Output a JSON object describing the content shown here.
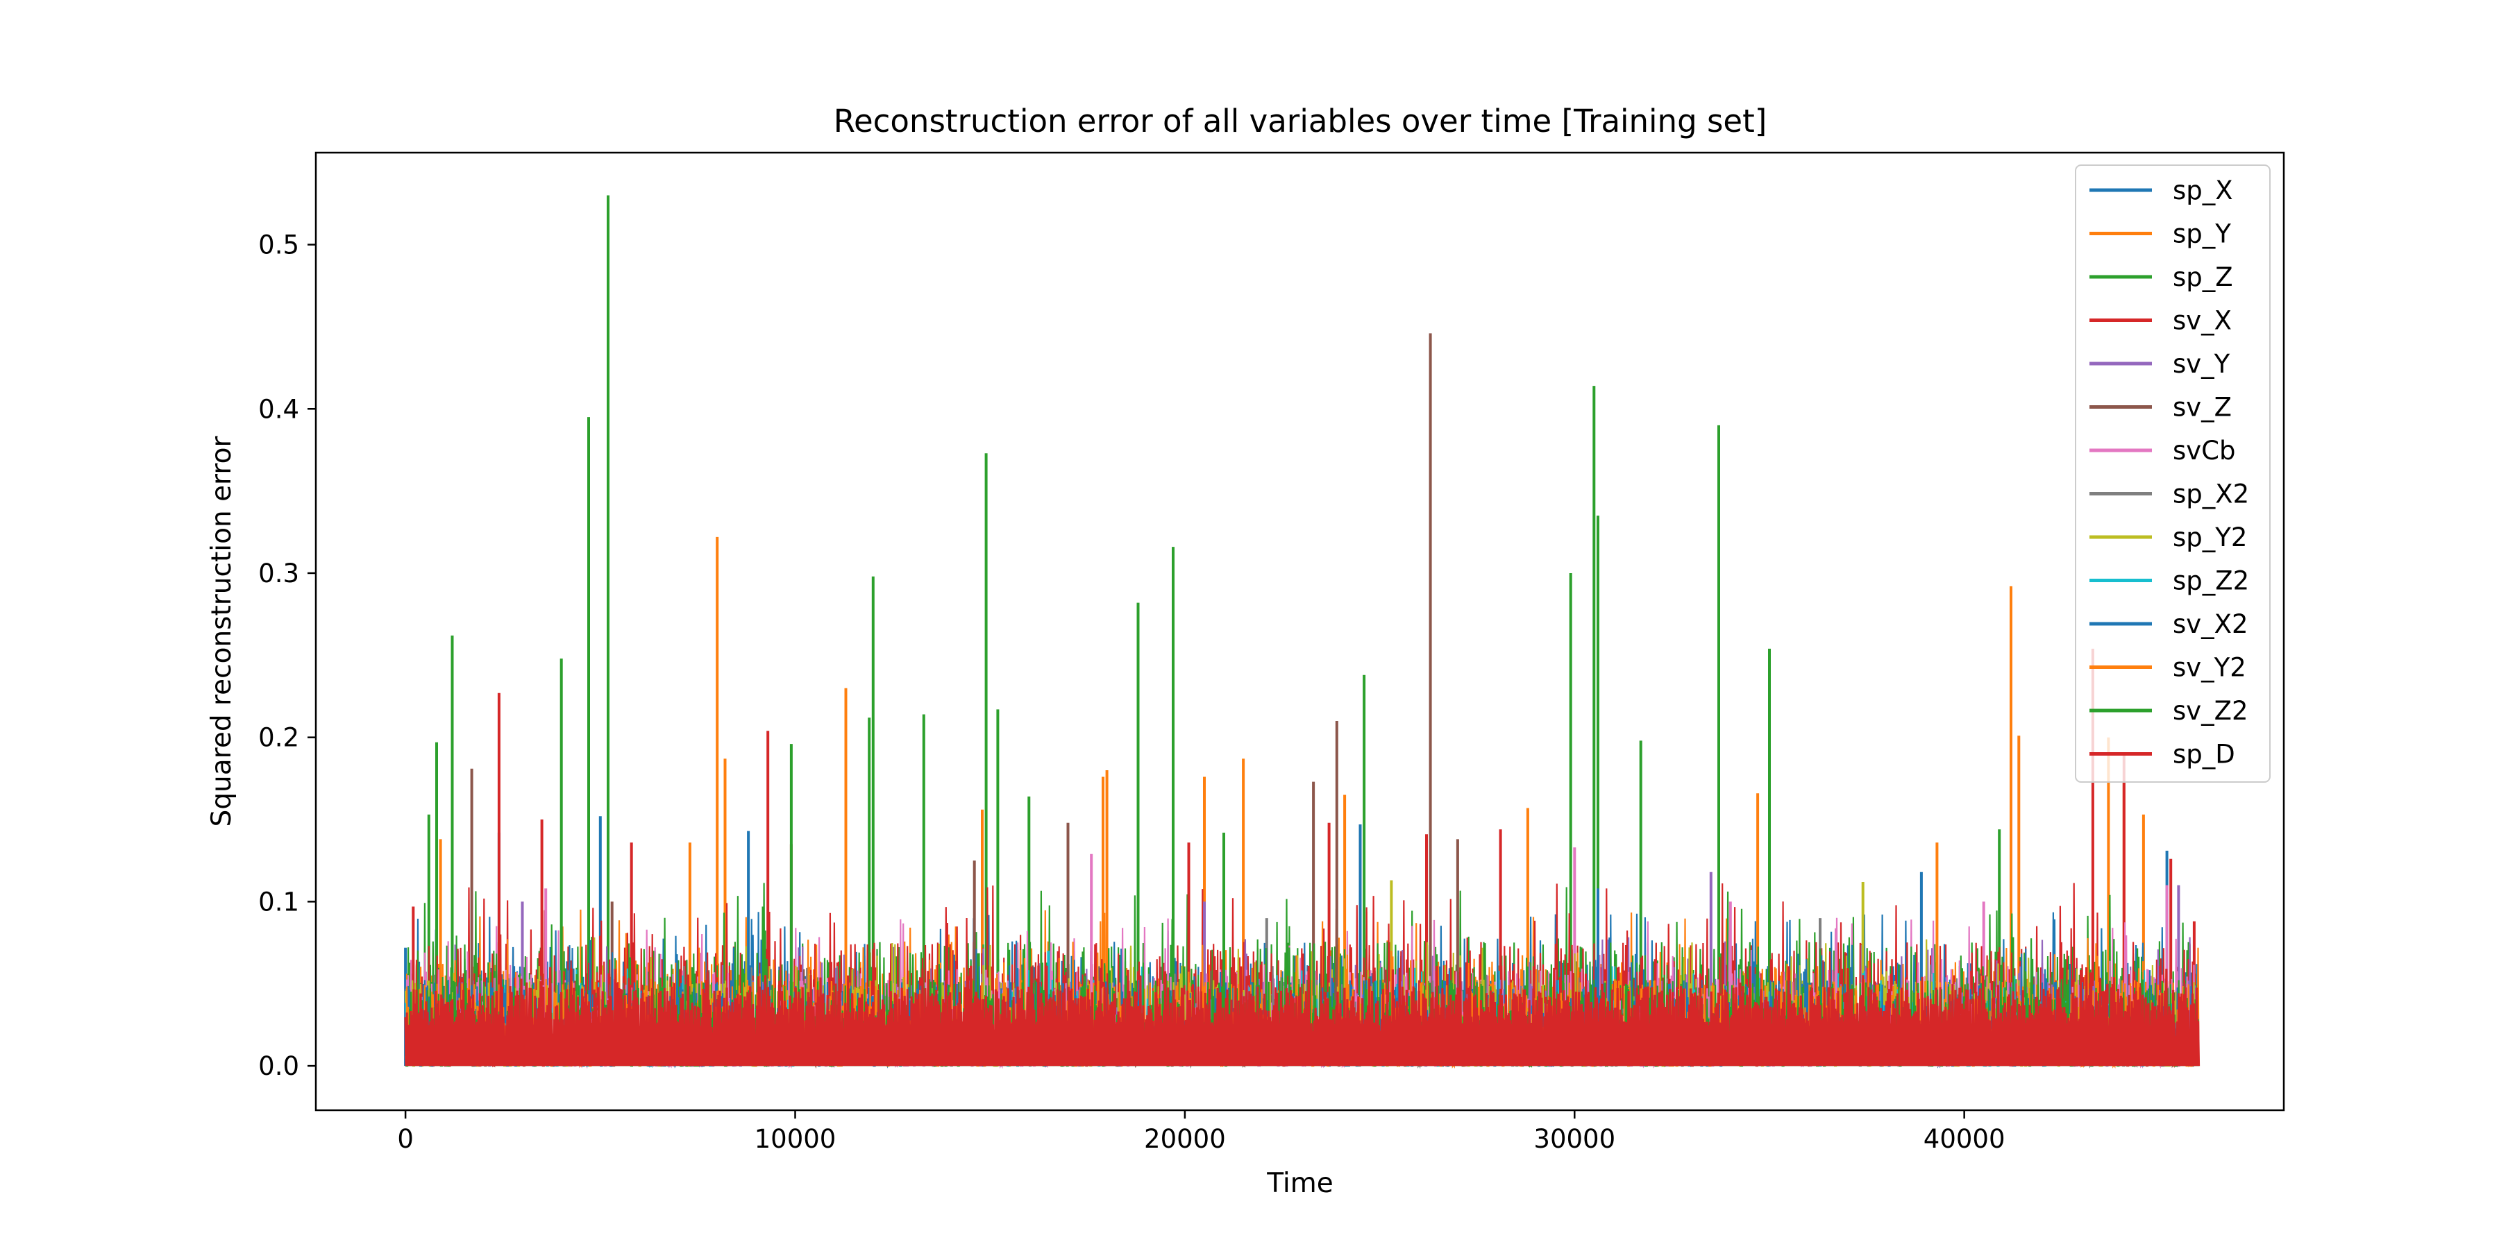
{
  "chart_data": {
    "type": "line",
    "title": "Reconstruction error of all variables over time [Training set]",
    "xlabel": "Time",
    "ylabel": "Squared reconstruction error",
    "xlim": [
      -2300,
      48200
    ],
    "ylim": [
      -0.027,
      0.556
    ],
    "x_ticks": [
      0,
      10000,
      20000,
      30000,
      40000
    ],
    "x_tick_labels": [
      "0",
      "10000",
      "20000",
      "30000",
      "40000"
    ],
    "y_ticks": [
      0.0,
      0.1,
      0.2,
      0.3,
      0.4,
      0.5
    ],
    "y_tick_labels": [
      "0.0",
      "0.1",
      "0.2",
      "0.3",
      "0.4",
      "0.5"
    ],
    "grid": false,
    "legend_position": "top-right",
    "x_range": [
      0,
      46000
    ],
    "series": [
      {
        "name": "sp_X",
        "color": "#1f77b4",
        "base_level": 0.025,
        "noise": 0.03,
        "peaks": [
          [
            0,
            0.072
          ],
          [
            2400,
            0.142
          ],
          [
            5000,
            0.152
          ],
          [
            8800,
            0.143
          ],
          [
            24500,
            0.147
          ],
          [
            45200,
            0.131
          ]
        ]
      },
      {
        "name": "sp_Y",
        "color": "#ff7f0e",
        "base_level": 0.025,
        "noise": 0.03,
        "peaks": [
          [
            900,
            0.138
          ],
          [
            8000,
            0.322
          ],
          [
            8200,
            0.187
          ],
          [
            11300,
            0.23
          ],
          [
            14800,
            0.156
          ],
          [
            17900,
            0.176
          ],
          [
            18000,
            0.18
          ],
          [
            20500,
            0.176
          ],
          [
            21500,
            0.187
          ],
          [
            24100,
            0.165
          ],
          [
            28800,
            0.157
          ],
          [
            34700,
            0.166
          ],
          [
            41200,
            0.292
          ],
          [
            41400,
            0.201
          ],
          [
            43700,
            0.2
          ],
          [
            44100,
            0.173
          ],
          [
            44600,
            0.153
          ]
        ]
      },
      {
        "name": "sp_Z",
        "color": "#2ca02c",
        "base_level": 0.03,
        "noise": 0.035,
        "peaks": [
          [
            600,
            0.153
          ],
          [
            800,
            0.197
          ],
          [
            1200,
            0.262
          ],
          [
            4000,
            0.248
          ],
          [
            4700,
            0.395
          ],
          [
            5200,
            0.53
          ],
          [
            11900,
            0.212
          ],
          [
            12000,
            0.298
          ],
          [
            13300,
            0.214
          ],
          [
            14900,
            0.373
          ],
          [
            15200,
            0.217
          ],
          [
            16000,
            0.164
          ],
          [
            18800,
            0.282
          ],
          [
            19700,
            0.316
          ],
          [
            24600,
            0.238
          ],
          [
            29900,
            0.3
          ],
          [
            30500,
            0.414
          ],
          [
            30600,
            0.335
          ],
          [
            31700,
            0.198
          ],
          [
            33700,
            0.39
          ],
          [
            35000,
            0.254
          ],
          [
            40900,
            0.144
          ]
        ]
      },
      {
        "name": "sv_X",
        "color": "#d62728",
        "base_level": 0.03,
        "noise": 0.035,
        "peaks": [
          [
            200,
            0.097
          ],
          [
            2400,
            0.227
          ],
          [
            3500,
            0.15
          ],
          [
            5800,
            0.136
          ],
          [
            9300,
            0.204
          ],
          [
            9900,
            0.135
          ],
          [
            20100,
            0.136
          ],
          [
            23700,
            0.148
          ],
          [
            26200,
            0.141
          ],
          [
            28100,
            0.144
          ],
          [
            43300,
            0.254
          ],
          [
            44100,
            0.189
          ],
          [
            45300,
            0.126
          ],
          [
            45900,
            0.088
          ]
        ]
      },
      {
        "name": "sv_Y",
        "color": "#9467bd",
        "base_level": 0.02,
        "noise": 0.025,
        "peaks": [
          [
            3000,
            0.1
          ],
          [
            20500,
            0.1
          ],
          [
            33500,
            0.118
          ],
          [
            45500,
            0.11
          ]
        ]
      },
      {
        "name": "sv_Z",
        "color": "#8c564b",
        "base_level": 0.015,
        "noise": 0.02,
        "peaks": [
          [
            1700,
            0.181
          ],
          [
            5300,
            0.1
          ],
          [
            14600,
            0.125
          ],
          [
            17000,
            0.148
          ],
          [
            23300,
            0.173
          ],
          [
            23900,
            0.21
          ],
          [
            26300,
            0.446
          ],
          [
            27000,
            0.138
          ]
        ]
      },
      {
        "name": "svCb",
        "color": "#e377c2",
        "base_level": 0.02,
        "noise": 0.03,
        "peaks": [
          [
            3600,
            0.108
          ],
          [
            17600,
            0.129
          ],
          [
            30000,
            0.133
          ],
          [
            34000,
            0.1
          ],
          [
            40500,
            0.1
          ],
          [
            45200,
            0.11
          ]
        ]
      },
      {
        "name": "sp_X2",
        "color": "#7f7f7f",
        "base_level": 0.015,
        "noise": 0.02,
        "peaks": [
          [
            22100,
            0.09
          ],
          [
            36300,
            0.09
          ]
        ]
      },
      {
        "name": "sp_Y2",
        "color": "#bcbd22",
        "base_level": 0.02,
        "noise": 0.025,
        "peaks": [
          [
            25300,
            0.113
          ],
          [
            37400,
            0.112
          ]
        ]
      },
      {
        "name": "sp_Z2",
        "color": "#17becf",
        "base_level": 0.015,
        "noise": 0.02,
        "peaks": [
          [
            16500,
            0.07
          ]
        ]
      },
      {
        "name": "sv_X2",
        "color": "#1f77b4",
        "base_level": 0.02,
        "noise": 0.025,
        "peaks": [
          [
            30600,
            0.108
          ],
          [
            38900,
            0.118
          ]
        ]
      },
      {
        "name": "sv_Y2",
        "color": "#ff7f0e",
        "base_level": 0.02,
        "noise": 0.025,
        "peaks": [
          [
            7300,
            0.136
          ],
          [
            39300,
            0.136
          ]
        ]
      },
      {
        "name": "sv_Z2",
        "color": "#2ca02c",
        "base_level": 0.02,
        "noise": 0.025,
        "peaks": [
          [
            9900,
            0.196
          ],
          [
            21000,
            0.142
          ]
        ]
      },
      {
        "name": "sp_D",
        "color": "#d62728",
        "base_level": 0.033,
        "noise": 0.012,
        "peaks": []
      }
    ]
  }
}
